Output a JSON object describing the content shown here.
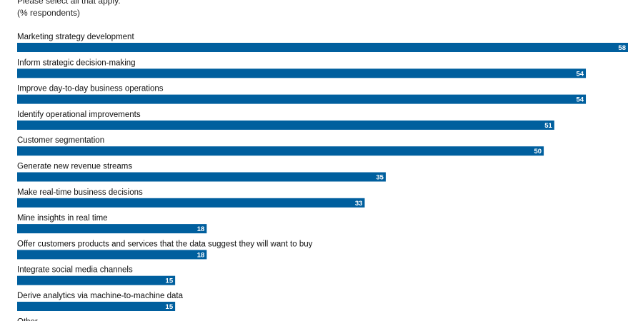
{
  "chart_data": {
    "type": "bar",
    "orientation": "horizontal",
    "title": "",
    "subtitle": [
      "Please select all that apply.",
      "(% respondents)"
    ],
    "categories": [
      "Marketing strategy development",
      "Inform strategic decision-making",
      "Improve day-to-day business operations",
      "Identify operational improvements",
      "Customer segmentation",
      "Generate new revenue streams",
      "Make real-time business decisions",
      "Mine insights in real time",
      "Offer customers products and services that the data suggest they will want to buy",
      "Integrate social media channels",
      "Derive analytics via machine-to-machine data",
      "Other"
    ],
    "values": [
      58,
      54,
      54,
      51,
      50,
      35,
      33,
      18,
      18,
      15,
      15,
      null
    ],
    "xlim": [
      0,
      58
    ],
    "grid": false,
    "legend": "none",
    "bar_color": "#005f9e",
    "value_label_color": "#ffffff"
  }
}
